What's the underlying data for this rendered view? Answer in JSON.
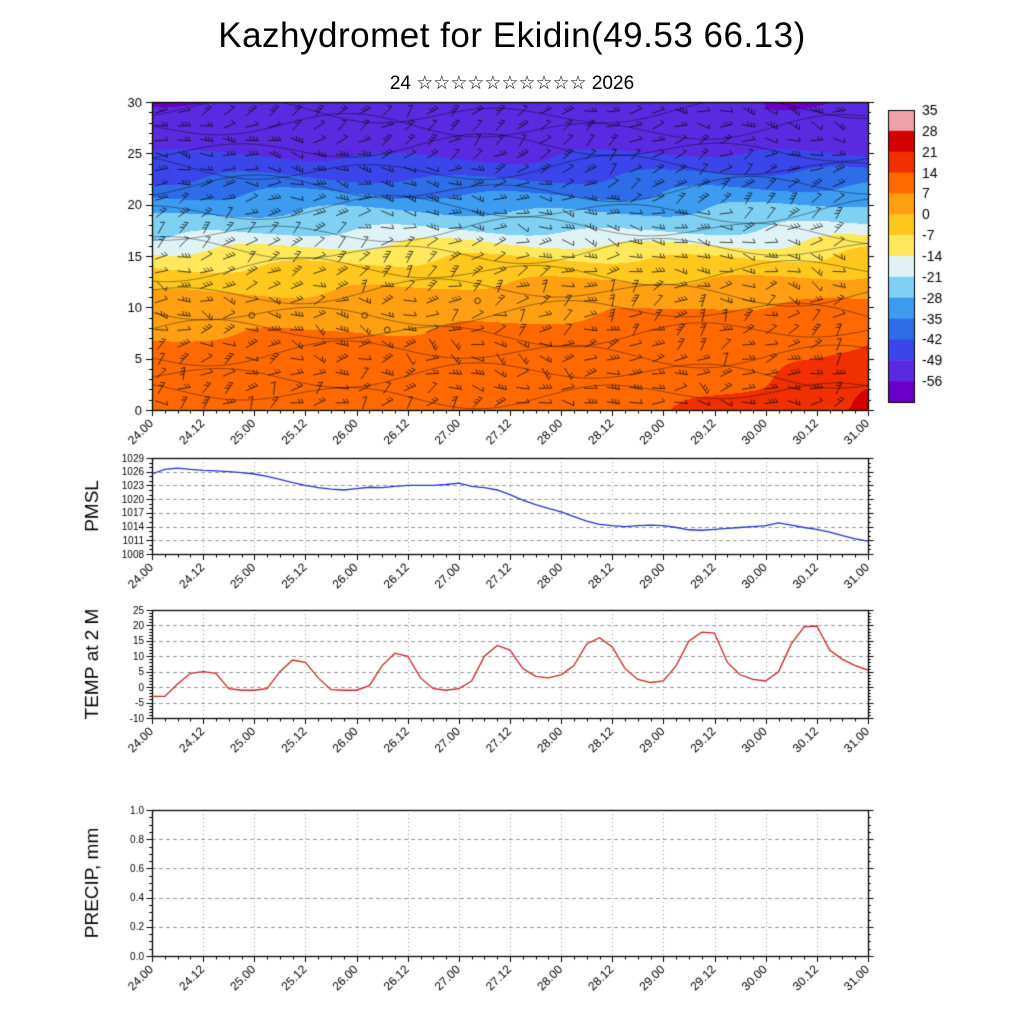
{
  "title": "Kazhydromet for Ekidin(49.53 66.13)",
  "subtitle": "24 ☆☆☆☆☆☆☆☆☆☆ 2026",
  "x_tick_labels": [
    "24.00",
    "24.12",
    "25.00",
    "25.12",
    "26.00",
    "26.12",
    "27.00",
    "27.12",
    "28.00",
    "28.12",
    "29.00",
    "29.12",
    "30.00",
    "30.12",
    "31.00"
  ],
  "chart_data": [
    {
      "type": "heatmap",
      "name": "temperature-height-cross-section",
      "ylim": [
        0,
        30
      ],
      "y_ticks": [
        "0",
        "5",
        "10",
        "15",
        "20",
        "25",
        "30"
      ],
      "x_hours_range": [
        0,
        168
      ],
      "time_step_hours": 12,
      "wind_barbs": true,
      "heights": [
        0,
        2.5,
        5,
        7.5,
        10,
        12.5,
        15,
        17.5,
        20,
        22.5,
        25,
        27.5,
        30
      ],
      "values": [
        [
          10,
          10.5,
          11,
          11.5,
          12,
          12,
          12.5,
          13,
          13,
          13.5,
          14,
          15,
          16,
          18,
          23
        ],
        [
          9,
          9.5,
          10,
          10.5,
          10.5,
          11,
          11,
          11.5,
          12,
          12,
          12.5,
          13,
          14,
          16,
          19
        ],
        [
          8,
          8.5,
          9,
          9,
          9.5,
          9.5,
          10,
          10,
          10.5,
          11,
          11,
          12,
          12.5,
          13.5,
          16
        ],
        [
          6,
          6.5,
          7,
          7,
          7.5,
          7.5,
          8,
          8,
          8.5,
          9,
          9,
          10,
          10.5,
          11.5,
          13
        ],
        [
          3,
          3.5,
          4,
          4,
          4.5,
          4.5,
          5,
          5,
          5.5,
          6,
          6,
          7,
          7.5,
          8.5,
          10
        ],
        [
          -3,
          -2.5,
          -2,
          -2,
          -1.5,
          -1.5,
          -1,
          -1,
          -0.5,
          0,
          0,
          1,
          1.5,
          2.5,
          3.5
        ],
        [
          -10,
          -9.5,
          -9.5,
          -9,
          -9,
          -9,
          -8.5,
          -8.5,
          -8,
          -8,
          -7.5,
          -7,
          -6.5,
          -6,
          -5
        ],
        [
          -23,
          -22.5,
          -22.5,
          -22,
          -22,
          -22,
          -21.5,
          -21.5,
          -21,
          -21,
          -20.5,
          -20,
          -20,
          -19.5,
          -19
        ],
        [
          -32,
          -31.5,
          -31,
          -31,
          -31,
          -30.5,
          -30.5,
          -30,
          -30,
          -30,
          -29.5,
          -29,
          -29,
          -28.5,
          -28
        ],
        [
          -43,
          -42.5,
          -42,
          -42,
          -42,
          -41.5,
          -41.5,
          -41,
          -41,
          -41,
          -40.5,
          -40,
          -40,
          -39.5,
          -39
        ],
        [
          -50,
          -50,
          -49.5,
          -50,
          -49.5,
          -49.5,
          -50,
          -50,
          -49.5,
          -49.5,
          -49.5,
          -49.5,
          -49.5,
          -50,
          -50
        ],
        [
          -54,
          -53.5,
          -53.5,
          -53.5,
          -53.5,
          -53.5,
          -54,
          -54,
          -53.5,
          -53.5,
          -53.5,
          -53.5,
          -53.5,
          -54,
          -54
        ],
        [
          -56,
          -56,
          -55.5,
          -55.5,
          -55.5,
          -55.5,
          -56,
          -56,
          -55.5,
          -55.5,
          -55.5,
          -55.5,
          -56,
          -56,
          -56
        ]
      ],
      "colorbar": {
        "tick_labels": [
          "35",
          "28",
          "21",
          "14",
          "7",
          "0",
          "-7",
          "-14",
          "-21",
          "-28",
          "-35",
          "-42",
          "-49",
          "-56"
        ],
        "colors_high_to_low": [
          "#f0a0a8",
          "#d40000",
          "#f03000",
          "#ff6a00",
          "#ffa013",
          "#ffc81e",
          "#ffe85c",
          "#dff3f6",
          "#7fd0f2",
          "#3d9bf0",
          "#2f6ce8",
          "#3a46ea",
          "#5a2ae0",
          "#6a00c8"
        ]
      }
    },
    {
      "type": "line",
      "name": "pmsl",
      "ylabel": "PMSL",
      "ylim": [
        1008,
        1029
      ],
      "y_ticks": [
        "1029",
        "1026",
        "1023",
        "1020",
        "1017",
        "1014",
        "1011",
        "1008"
      ],
      "minor_step": 1,
      "color": "#2233cc",
      "x_step_hours": 3,
      "values": [
        1025.5,
        1026.5,
        1026.8,
        1026.5,
        1026.3,
        1026.2,
        1026.0,
        1025.8,
        1025.5,
        1025.0,
        1024.3,
        1023.6,
        1023.0,
        1022.5,
        1022.2,
        1022.0,
        1022.3,
        1022.6,
        1022.5,
        1022.8,
        1023.0,
        1023.0,
        1023.0,
        1023.2,
        1023.5,
        1022.8,
        1022.5,
        1022.0,
        1021.0,
        1019.8,
        1018.8,
        1018.0,
        1017.2,
        1016.2,
        1015.2,
        1014.5,
        1014.2,
        1014.0,
        1014.2,
        1014.3,
        1014.2,
        1013.8,
        1013.3,
        1013.2,
        1013.4,
        1013.6,
        1013.8,
        1014.0,
        1014.2,
        1014.8,
        1014.3,
        1013.8,
        1013.4,
        1012.8,
        1012.0,
        1011.3,
        1010.8
      ]
    },
    {
      "type": "line",
      "name": "temp-2m",
      "ylabel": "TEMP at 2 M",
      "ylim": [
        -10,
        25
      ],
      "y_ticks": [
        "25",
        "20",
        "15",
        "10",
        "5",
        "0",
        "-5",
        "-10"
      ],
      "minor_step": 1,
      "color": "#cc2222",
      "x_step_hours": 3,
      "values": [
        -3.0,
        -3.0,
        1.0,
        4.5,
        5.0,
        4.5,
        -0.5,
        -1.0,
        -1.0,
        -0.5,
        5.0,
        8.8,
        8.0,
        3.0,
        -0.8,
        -1.0,
        -1.0,
        0.5,
        7.0,
        11.0,
        10.0,
        3.0,
        -0.5,
        -1.0,
        -0.5,
        2.0,
        10.0,
        13.5,
        12.0,
        6.0,
        3.5,
        3.0,
        4.0,
        7.0,
        14.0,
        16.0,
        13.0,
        6.0,
        2.5,
        1.5,
        2.0,
        7.0,
        15.0,
        17.8,
        17.5,
        8.0,
        4.0,
        2.5,
        2.0,
        5.0,
        14.0,
        19.5,
        19.8,
        12.0,
        9.0,
        7.0,
        5.5
      ]
    },
    {
      "type": "line",
      "name": "precip",
      "ylabel": "PRECIP, mm",
      "ylim": [
        0,
        1
      ],
      "y_ticks": [
        "1.0",
        "0.8",
        "0.6",
        "0.4",
        "0.2",
        "0.0"
      ],
      "minor_step": 0.05,
      "color": "#2233cc",
      "x_step_hours": 3,
      "values": []
    }
  ]
}
